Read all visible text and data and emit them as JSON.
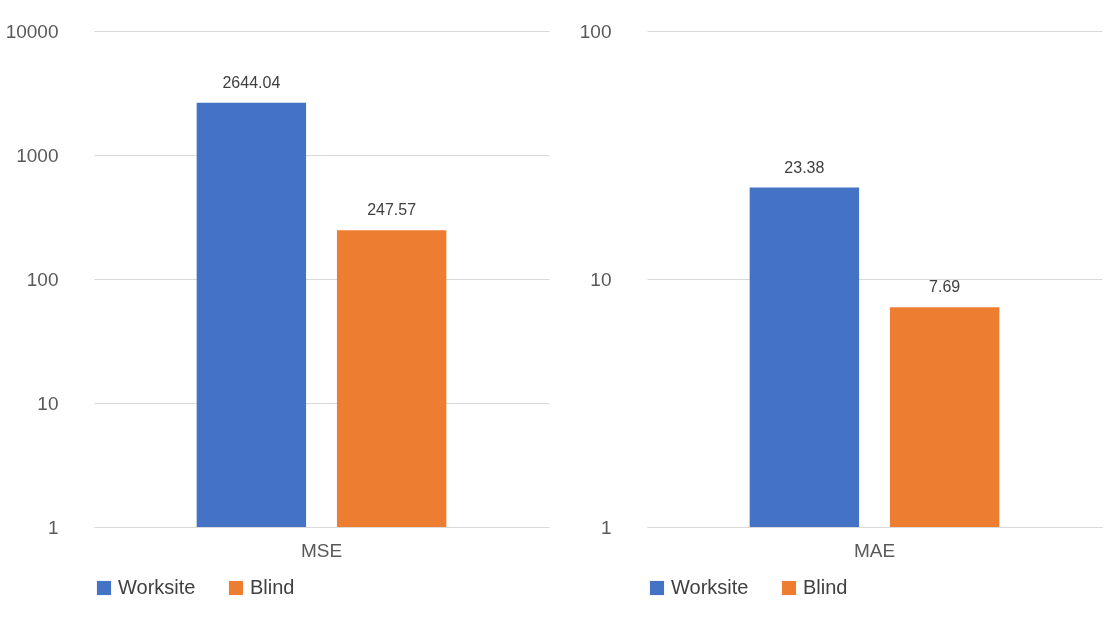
{
  "chart_data": [
    {
      "type": "bar",
      "categories": [
        "MSE"
      ],
      "series": [
        {
          "name": "Worksite",
          "color": "#4472c4",
          "values": [
            2644.04
          ]
        },
        {
          "name": "Blind",
          "color": "#ed7d31",
          "values": [
            247.57
          ]
        }
      ],
      "log": true,
      "ylim": [
        1,
        10000
      ],
      "yticks": [
        1,
        10,
        100,
        1000,
        10000
      ],
      "grid": "y",
      "legend": "bottom",
      "data_labels": true
    },
    {
      "type": "bar",
      "categories": [
        "MAE"
      ],
      "series": [
        {
          "name": "Worksite",
          "color": "#4472c4",
          "values": [
            23.38
          ]
        },
        {
          "name": "Blind",
          "color": "#ed7d31",
          "values": [
            7.69
          ]
        }
      ],
      "log": true,
      "ylim": [
        1,
        100
      ],
      "yticks": [
        1,
        10,
        100
      ],
      "grid": "y",
      "legend": "bottom",
      "data_labels": true
    }
  ]
}
